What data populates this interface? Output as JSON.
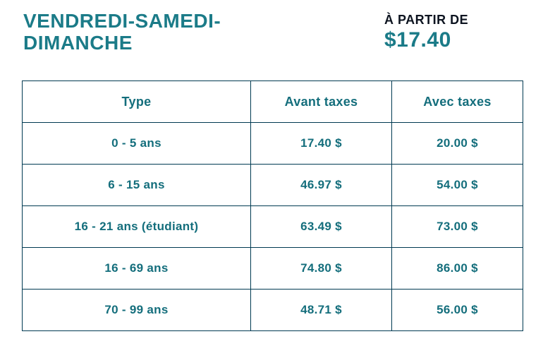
{
  "header": {
    "title": "VENDREDI-SAMEDI-DIMANCHE",
    "price_callout": {
      "label": "À PARTIR DE",
      "value": "$17.40"
    }
  },
  "table": {
    "columns": [
      "Type",
      "Avant taxes",
      "Avec taxes"
    ],
    "rows": [
      [
        "0 - 5 ans",
        "17.40 $",
        "20.00 $"
      ],
      [
        "6 - 15 ans",
        "46.97 $",
        "54.00 $"
      ],
      [
        "16 - 21 ans (étudiant)",
        "63.49 $",
        "73.00 $"
      ],
      [
        "16 - 69 ans",
        "74.80 $",
        "86.00 $"
      ],
      [
        "70 - 99 ans",
        "48.71 $",
        "56.00 $"
      ]
    ]
  },
  "colors": {
    "accent_teal": "#1B7B88",
    "table_text_teal": "#146E7C",
    "table_border": "#003A52",
    "dark_text": "#0D1420",
    "background": "#FFFFFF"
  }
}
